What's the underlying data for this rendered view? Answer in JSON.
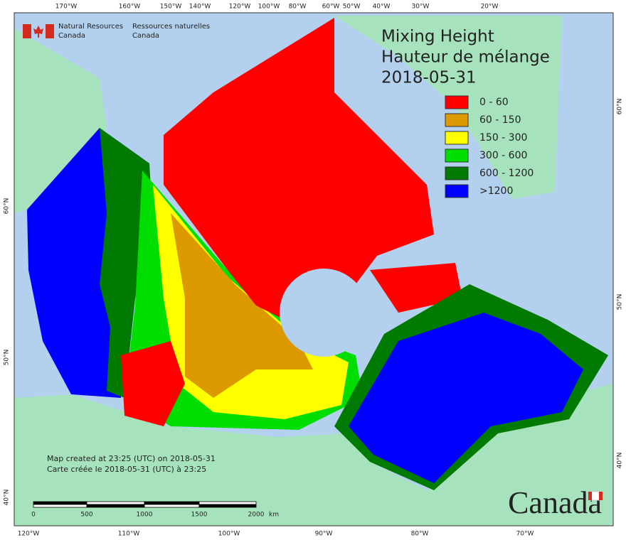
{
  "header": {
    "agency_en": [
      "Natural Resources",
      "Canada"
    ],
    "agency_fr": [
      "Ressources naturelles",
      "Canada"
    ]
  },
  "title": [
    "Mixing Height",
    "Hauteur de mélange",
    "2018-05-31"
  ],
  "legend": [
    {
      "label": "0 - 60",
      "color": "#ff0000"
    },
    {
      "label": "60 - 150",
      "color": "#dd9a00"
    },
    {
      "label": "150 - 300",
      "color": "#ffff00"
    },
    {
      "label": "300 - 600",
      "color": "#00dd00"
    },
    {
      "label": "600 - 1200",
      "color": "#007a00"
    },
    {
      "label": ">1200",
      "color": "#0000ff"
    }
  ],
  "axes": {
    "top": [
      "170°W",
      "160°W",
      "150°W",
      "140°W",
      "120°W",
      "100°W",
      "80°W",
      "60°W",
      "50°W",
      "40°W",
      "30°W",
      "20°W"
    ],
    "bottom": [
      "120°W",
      "110°W",
      "100°W",
      "90°W",
      "80°W",
      "70°W"
    ],
    "left": [
      "60°N",
      "50°N",
      "40°N"
    ],
    "right": [
      "60°N",
      "50°N",
      "40°N"
    ]
  },
  "footer": [
    "Map created at 23:25 (UTC) on 2018-05-31",
    "Carte créée le 2018-05-31 (UTC) à 23:25"
  ],
  "scale_bar": {
    "labels": [
      "0",
      "500",
      "1000",
      "1500",
      "2000"
    ],
    "unit": "km"
  },
  "wordmark": "Canada"
}
